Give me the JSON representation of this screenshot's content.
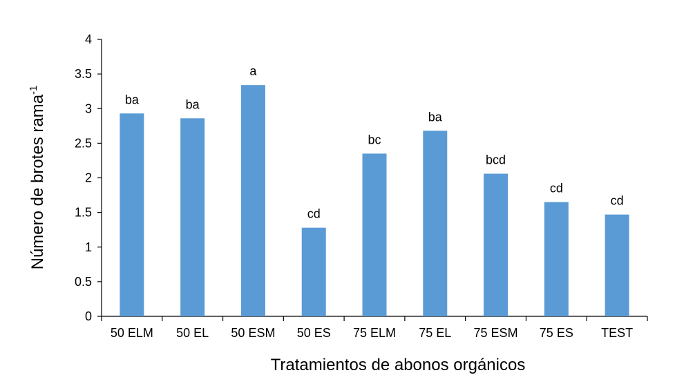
{
  "chart_data": {
    "type": "bar",
    "categories": [
      "50 ELM",
      "50 EL",
      "50 ESM",
      "50 ES",
      "75 ELM",
      "75 EL",
      "75 ESM",
      "75 ES",
      "TEST"
    ],
    "values": [
      2.93,
      2.86,
      3.34,
      1.28,
      2.35,
      2.68,
      2.06,
      1.65,
      1.47
    ],
    "labels": [
      "ba",
      "ba",
      "a",
      "cd",
      "bc",
      "ba",
      "bcd",
      "cd",
      "cd"
    ],
    "xlabel": "Tratamientos de abonos orgánicos",
    "ylabel_main": "Número de brotes rama",
    "ylabel_superscript": "-1",
    "ylim": [
      0,
      4
    ],
    "yticks": [
      "0",
      "0.5",
      "1",
      "1.5",
      "2",
      "2.5",
      "3",
      "3.5",
      "4"
    ],
    "bar_color": "#5b9bd5",
    "grid": false,
    "legend": "none"
  }
}
